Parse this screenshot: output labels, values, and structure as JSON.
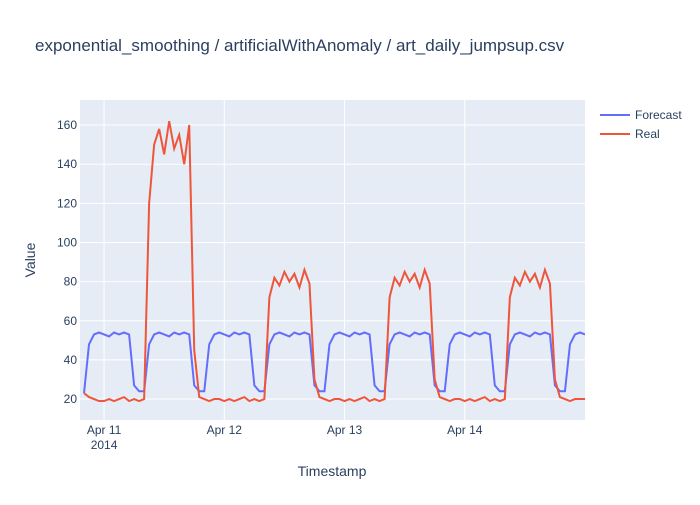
{
  "chart_data": {
    "type": "line",
    "title": "exponential_smoothing / artificialWithAnomaly / art_daily_jumpsup.csv",
    "x_label": "Timestamp",
    "y_label": "Value",
    "x": [
      "2014-04-10 20:00",
      "2014-04-10 21:00",
      "2014-04-10 22:00",
      "2014-04-10 23:00",
      "2014-04-11 00:00",
      "2014-04-11 01:00",
      "2014-04-11 02:00",
      "2014-04-11 03:00",
      "2014-04-11 04:00",
      "2014-04-11 05:00",
      "2014-04-11 06:00",
      "2014-04-11 07:00",
      "2014-04-11 08:00",
      "2014-04-11 09:00",
      "2014-04-11 10:00",
      "2014-04-11 11:00",
      "2014-04-11 12:00",
      "2014-04-11 13:00",
      "2014-04-11 14:00",
      "2014-04-11 15:00",
      "2014-04-11 16:00",
      "2014-04-11 17:00",
      "2014-04-11 18:00",
      "2014-04-11 19:00",
      "2014-04-11 20:00",
      "2014-04-11 21:00",
      "2014-04-11 22:00",
      "2014-04-11 23:00",
      "2014-04-12 00:00",
      "2014-04-12 01:00",
      "2014-04-12 02:00",
      "2014-04-12 03:00",
      "2014-04-12 04:00",
      "2014-04-12 05:00",
      "2014-04-12 06:00",
      "2014-04-12 07:00",
      "2014-04-12 08:00",
      "2014-04-12 09:00",
      "2014-04-12 10:00",
      "2014-04-12 11:00",
      "2014-04-12 12:00",
      "2014-04-12 13:00",
      "2014-04-12 14:00",
      "2014-04-12 15:00",
      "2014-04-12 16:00",
      "2014-04-12 17:00",
      "2014-04-12 18:00",
      "2014-04-12 19:00",
      "2014-04-12 20:00",
      "2014-04-12 21:00",
      "2014-04-12 22:00",
      "2014-04-12 23:00",
      "2014-04-13 00:00",
      "2014-04-13 01:00",
      "2014-04-13 02:00",
      "2014-04-13 03:00",
      "2014-04-13 04:00",
      "2014-04-13 05:00",
      "2014-04-13 06:00",
      "2014-04-13 07:00",
      "2014-04-13 08:00",
      "2014-04-13 09:00",
      "2014-04-13 10:00",
      "2014-04-13 11:00",
      "2014-04-13 12:00",
      "2014-04-13 13:00",
      "2014-04-13 14:00",
      "2014-04-13 15:00",
      "2014-04-13 16:00",
      "2014-04-13 17:00",
      "2014-04-13 18:00",
      "2014-04-13 19:00",
      "2014-04-13 20:00",
      "2014-04-13 21:00",
      "2014-04-13 22:00",
      "2014-04-13 23:00",
      "2014-04-14 00:00",
      "2014-04-14 01:00",
      "2014-04-14 02:00",
      "2014-04-14 03:00",
      "2014-04-14 04:00",
      "2014-04-14 05:00",
      "2014-04-14 06:00",
      "2014-04-14 07:00",
      "2014-04-14 08:00",
      "2014-04-14 09:00",
      "2014-04-14 10:00",
      "2014-04-14 11:00",
      "2014-04-14 12:00",
      "2014-04-14 13:00",
      "2014-04-14 14:00",
      "2014-04-14 15:00",
      "2014-04-14 16:00",
      "2014-04-14 17:00",
      "2014-04-14 18:00",
      "2014-04-14 19:00",
      "2014-04-14 20:00",
      "2014-04-14 21:00",
      "2014-04-14 22:00",
      "2014-04-14 23:00",
      "2014-04-15 00:00"
    ],
    "series": [
      {
        "name": "Forecast",
        "color": "#636efa",
        "values": [
          23,
          48,
          53,
          54,
          53,
          52,
          54,
          53,
          54,
          53,
          27,
          24,
          24,
          48,
          53,
          54,
          53,
          52,
          54,
          53,
          54,
          53,
          27,
          24,
          24,
          48,
          53,
          54,
          53,
          52,
          54,
          53,
          54,
          53,
          27,
          24,
          24,
          48,
          53,
          54,
          53,
          52,
          54,
          53,
          54,
          53,
          27,
          24,
          24,
          48,
          53,
          54,
          53,
          52,
          54,
          53,
          54,
          53,
          27,
          24,
          24,
          48,
          53,
          54,
          53,
          52,
          54,
          53,
          54,
          53,
          27,
          24,
          24,
          48,
          53,
          54,
          53,
          52,
          54,
          53,
          54,
          53,
          27,
          24,
          24,
          48,
          53,
          54,
          53,
          52,
          54,
          53,
          54,
          53,
          27,
          24,
          24,
          48,
          53,
          54,
          53
        ]
      },
      {
        "name": "Real",
        "color": "#EF553B",
        "values": [
          23,
          21,
          20,
          19,
          19,
          20,
          19,
          20,
          21,
          19,
          20,
          19,
          20,
          120,
          150,
          158,
          145,
          162,
          148,
          155,
          140,
          160,
          45,
          21,
          20,
          19,
          20,
          20,
          19,
          20,
          19,
          20,
          21,
          19,
          20,
          19,
          20,
          72,
          82,
          78,
          85,
          80,
          84,
          77,
          86,
          79,
          30,
          21,
          20,
          19,
          20,
          20,
          19,
          20,
          19,
          20,
          21,
          19,
          20,
          19,
          20,
          72,
          82,
          78,
          85,
          80,
          84,
          77,
          86,
          79,
          30,
          21,
          20,
          19,
          20,
          20,
          19,
          20,
          19,
          20,
          21,
          19,
          20,
          19,
          20,
          72,
          82,
          78,
          85,
          80,
          84,
          77,
          86,
          79,
          30,
          21,
          20,
          19,
          20,
          20,
          20
        ]
      }
    ],
    "xlim": [
      "2014-04-10 19:12",
      "2014-04-15 00:00"
    ],
    "xticks": [
      {
        "value": "2014-04-11 00:00",
        "label": [
          "Apr 11",
          "2014"
        ]
      },
      {
        "value": "2014-04-12 00:00",
        "label": "Apr 12"
      },
      {
        "value": "2014-04-13 00:00",
        "label": "Apr 13"
      },
      {
        "value": "2014-04-14 00:00",
        "label": "Apr 14"
      }
    ],
    "ylim": [
      9.3,
      172.8
    ],
    "yticks": [
      20,
      40,
      60,
      80,
      100,
      120,
      140,
      160
    ],
    "grid": true,
    "legend": "outside-right"
  }
}
